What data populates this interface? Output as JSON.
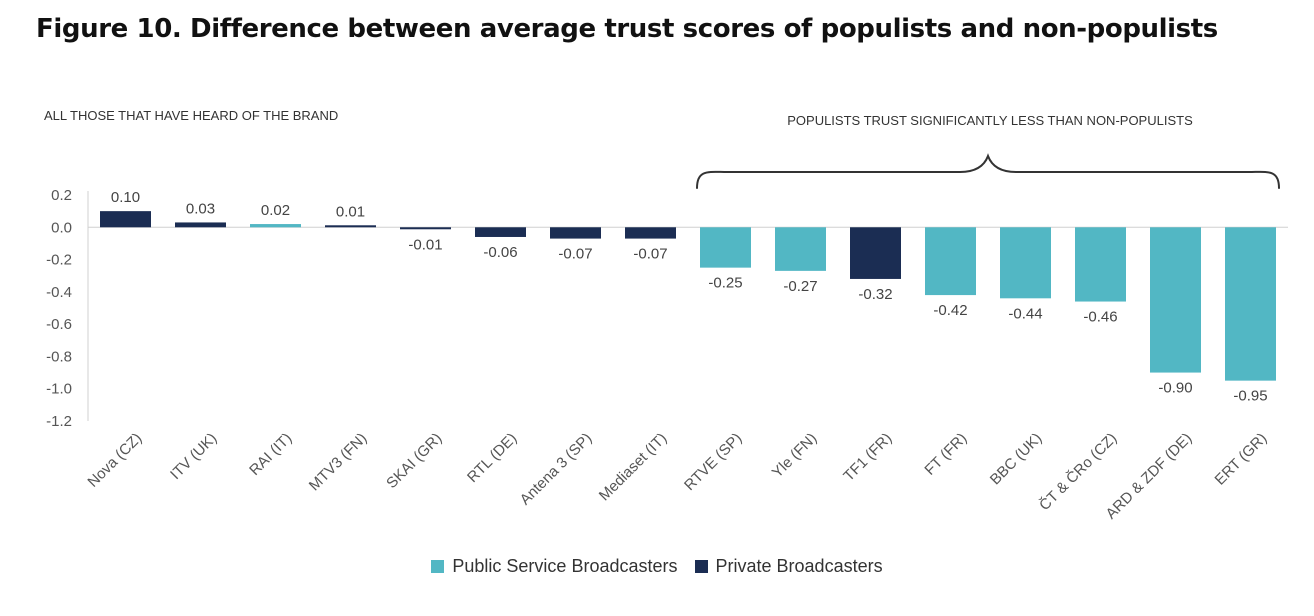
{
  "page": {
    "title": "Figure 10. Difference between average trust scores of populists and non-populists",
    "subtitle": "ALL THOSE THAT HAVE HEARD OF THE BRAND",
    "annotation": "POPULISTS TRUST SIGNIFICANTLY LESS THAN NON-POPULISTS"
  },
  "colors": {
    "public": "#52b7c4",
    "private": "#1b2d53",
    "axis": "#d0d0d0",
    "tick_text": "#555555",
    "label_text": "#444444",
    "brace": "#333333"
  },
  "legend": [
    {
      "key": "public",
      "label": "Public Service Broadcasters"
    },
    {
      "key": "private",
      "label": "Private Broadcasters"
    }
  ],
  "chart_data": {
    "type": "bar",
    "title": "Figure 10. Difference between average trust scores of populists and non-populists",
    "categories": [
      "Nova (CZ)",
      "ITV (UK)",
      "RAI (IT)",
      "MTV3 (FN)",
      "SKAI (GR)",
      "RTL (DE)",
      "Antena 3 (SP)",
      "Mediaset (IT)",
      "RTVE (SP)",
      "Yle (FN)",
      "TF1 (FR)",
      "FT (FR)",
      "BBC (UK)",
      "ČT & ČRo (CZ)",
      "ARD & ZDF (DE)",
      "ERT (GR)"
    ],
    "values": [
      0.1,
      0.03,
      0.02,
      0.01,
      -0.01,
      -0.06,
      -0.07,
      -0.07,
      -0.25,
      -0.27,
      -0.32,
      -0.42,
      -0.44,
      -0.46,
      -0.9,
      -0.95
    ],
    "value_labels": [
      "0.10",
      "0.03",
      "0.02",
      "0.01",
      "-0.01",
      "-0.06",
      "-0.07",
      "-0.07",
      "-0.25",
      "-0.27",
      "-0.32",
      "-0.42",
      "-0.44",
      "-0.46",
      "-0.90",
      "-0.95"
    ],
    "groups": [
      "private",
      "private",
      "public",
      "private",
      "private",
      "private",
      "private",
      "private",
      "public",
      "public",
      "private",
      "public",
      "public",
      "public",
      "public",
      "public"
    ],
    "series": [
      {
        "name": "Public Service Broadcasters"
      },
      {
        "name": "Private Broadcasters"
      }
    ],
    "ylim": [
      -1.2,
      0.2
    ],
    "yticks": [
      0.2,
      0.0,
      -0.2,
      -0.4,
      -0.6,
      -0.8,
      -1.0,
      -1.2
    ],
    "ytick_labels": [
      "0.2",
      "0.0",
      "-0.2",
      "-0.4",
      "-0.6",
      "-0.8",
      "-1.0",
      "-1.2"
    ],
    "grid": false,
    "legend_position": "bottom",
    "xlabel": "",
    "ylabel": "",
    "bracket_span": [
      "RTVE (SP)",
      "ERT (GR)"
    ]
  }
}
